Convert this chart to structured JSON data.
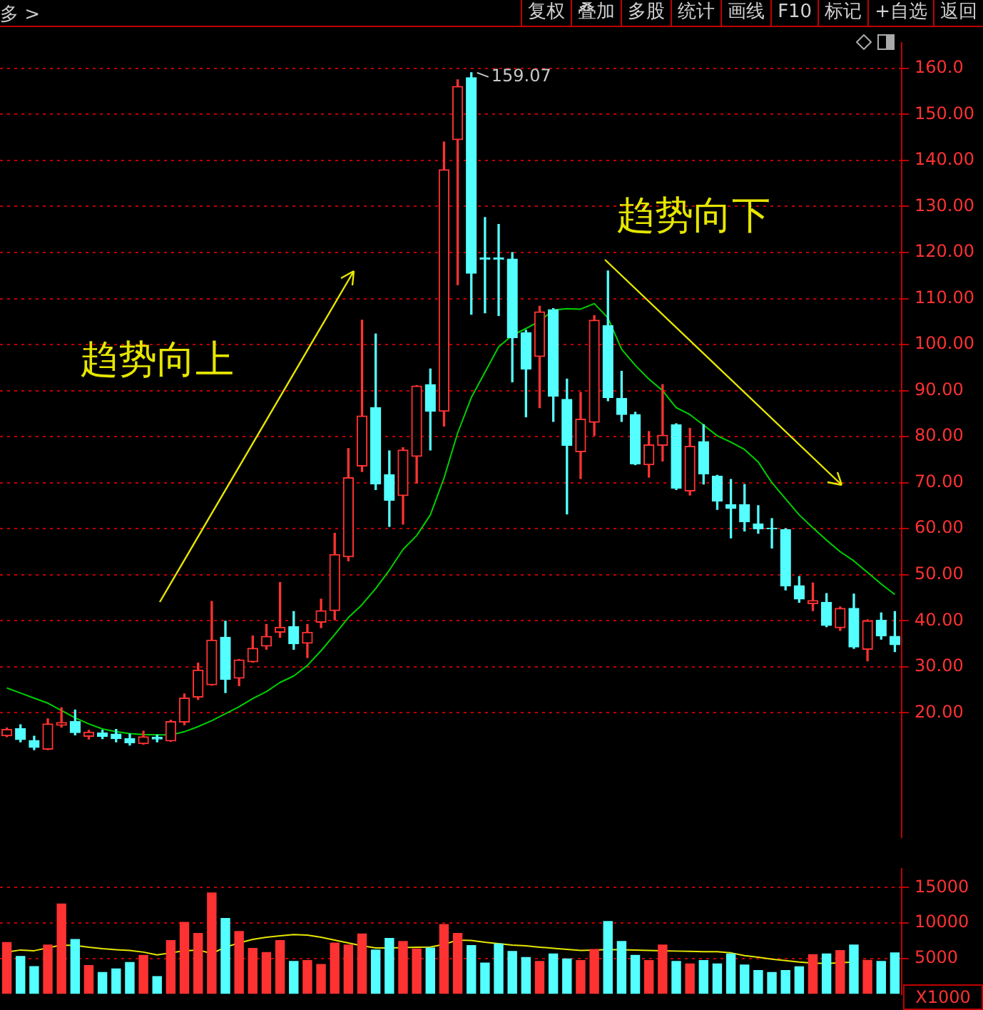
{
  "chart_data": [
    {
      "type": "candlestick",
      "categories": [
        null,
        null,
        null,
        null,
        null,
        null,
        null,
        null,
        null,
        null,
        null,
        null,
        null,
        null,
        null,
        null,
        null,
        null,
        null,
        null,
        null,
        null,
        null,
        null,
        null,
        null,
        null,
        null,
        null,
        null,
        null,
        null,
        null,
        null,
        null,
        null,
        null,
        null,
        null,
        null,
        null,
        null,
        null,
        null,
        null,
        null,
        null,
        null,
        null,
        null,
        null,
        null,
        null,
        null,
        null,
        null,
        null,
        null,
        null,
        null,
        null,
        null,
        null,
        null,
        null,
        null
      ],
      "ohlc": [
        [
          15.0,
          16.7,
          14.8,
          16.4
        ],
        [
          16.6,
          17.4,
          13.7,
          14.2
        ],
        [
          14.0,
          14.9,
          12.0,
          12.5
        ],
        [
          12.1,
          18.7,
          12.0,
          17.6
        ],
        [
          17.3,
          21.1,
          16.9,
          17.9
        ],
        [
          18.1,
          20.6,
          15.2,
          15.7
        ],
        [
          14.9,
          16.2,
          14.3,
          15.8
        ],
        [
          15.6,
          16.2,
          14.4,
          14.9
        ],
        [
          15.4,
          16.4,
          13.7,
          14.4
        ],
        [
          14.4,
          15.4,
          13.0,
          13.5
        ],
        [
          13.3,
          16.0,
          13.2,
          14.8
        ],
        [
          14.7,
          15.2,
          13.7,
          14.3
        ],
        [
          13.9,
          18.4,
          13.8,
          18.1
        ],
        [
          18.0,
          24.1,
          17.4,
          23.2
        ],
        [
          23.4,
          30.8,
          22.9,
          29.3
        ],
        [
          26.1,
          44.2,
          26.0,
          35.8
        ],
        [
          36.4,
          39.9,
          24.4,
          27.3
        ],
        [
          27.5,
          31.6,
          25.9,
          31.5
        ],
        [
          31.1,
          36.7,
          31.0,
          34.0
        ],
        [
          34.5,
          39.2,
          33.8,
          36.6
        ],
        [
          37.5,
          48.3,
          36.4,
          38.6
        ],
        [
          38.7,
          42.0,
          33.8,
          35.0
        ],
        [
          35.1,
          39.2,
          32.0,
          37.5
        ],
        [
          39.7,
          44.7,
          38.5,
          42.2
        ],
        [
          42.2,
          59.0,
          40.2,
          54.4
        ],
        [
          53.9,
          77.4,
          53.0,
          71.1
        ],
        [
          73.6,
          105.3,
          72.4,
          84.5
        ],
        [
          86.3,
          102.3,
          68.5,
          69.7
        ],
        [
          71.7,
          76.9,
          60.5,
          66.2
        ],
        [
          67.2,
          77.6,
          61.0,
          77.1
        ],
        [
          75.7,
          91.1,
          69.9,
          91.0
        ],
        [
          91.3,
          94.7,
          77.1,
          85.5
        ],
        [
          85.5,
          144.0,
          82.3,
          138.0
        ],
        [
          144.5,
          157.5,
          113.0,
          156.1
        ],
        [
          158.0,
          159.07,
          106.6,
          115.5
        ],
        [
          118.8,
          127.6,
          106.9,
          118.5
        ],
        [
          118.8,
          126.1,
          106.3,
          118.5
        ],
        [
          118.6,
          120.0,
          91.9,
          101.5
        ],
        [
          102.6,
          103.1,
          84.3,
          94.7
        ],
        [
          97.4,
          108.3,
          86.3,
          107.1
        ],
        [
          107.6,
          107.8,
          83.3,
          88.8
        ],
        [
          88.1,
          92.5,
          63.2,
          78.1
        ],
        [
          76.7,
          89.6,
          70.9,
          83.8
        ],
        [
          83.1,
          106.3,
          80.3,
          105.3
        ],
        [
          104.1,
          116.0,
          87.8,
          88.5
        ],
        [
          88.3,
          94.2,
          83.3,
          84.8
        ],
        [
          84.8,
          85.3,
          73.9,
          74.1
        ],
        [
          73.9,
          81.1,
          71.2,
          78.2
        ],
        [
          78.1,
          91.3,
          74.7,
          80.3
        ],
        [
          82.6,
          82.8,
          68.5,
          68.8
        ],
        [
          68.2,
          81.8,
          67.3,
          77.9
        ],
        [
          78.9,
          82.6,
          69.7,
          71.9
        ],
        [
          71.4,
          71.6,
          64.2,
          66.0
        ],
        [
          65.2,
          70.7,
          58.0,
          64.4
        ],
        [
          65.2,
          69.6,
          59.5,
          61.5
        ],
        [
          61.0,
          65.0,
          59.0,
          60.0
        ],
        [
          60.1,
          62.2,
          55.8,
          60.0
        ],
        [
          59.8,
          60.0,
          46.7,
          47.6
        ],
        [
          47.6,
          49.6,
          44.0,
          44.7
        ],
        [
          43.7,
          48.2,
          42.2,
          44.4
        ],
        [
          44.0,
          45.9,
          38.7,
          39.0
        ],
        [
          38.5,
          43.0,
          37.9,
          42.7
        ],
        [
          42.7,
          45.8,
          34.0,
          34.3
        ],
        [
          33.8,
          40.2,
          31.3,
          40.0
        ],
        [
          40.1,
          41.7,
          36.0,
          36.7
        ],
        [
          36.6,
          42.0,
          33.3,
          34.8
        ]
      ],
      "series": [
        {
          "type": "line",
          "color": "#00d000",
          "values": [
            25.4,
            24.3,
            23.2,
            22.1,
            20.5,
            18.9,
            17.6,
            16.5,
            15.9,
            15.5,
            15.3,
            15.2,
            15.2,
            15.9,
            17.0,
            18.3,
            19.8,
            21.3,
            23.1,
            24.6,
            26.6,
            28.0,
            30.3,
            33.5,
            37.0,
            40.7,
            43.5,
            47.0,
            51.0,
            55.5,
            58.5,
            63.0,
            71.0,
            80.8,
            88.5,
            94.0,
            99.5,
            102.0,
            103.5,
            105.1,
            107.5,
            107.8,
            107.7,
            108.9,
            105.8,
            99.0,
            95.5,
            92.5,
            90.0,
            86.3,
            84.8,
            82.5,
            80.2,
            78.8,
            77.2,
            74.5,
            70.0,
            66.5,
            63.0,
            60.2,
            57.5,
            55.0,
            53.0,
            50.5,
            48.0,
            45.7
          ]
        }
      ],
      "ylim": [
        -7,
        165.5
      ],
      "yticks": [
        {
          "value": 20,
          "label": "20.00"
        },
        {
          "value": 30,
          "label": "30.00"
        },
        {
          "value": 40,
          "label": "40.00"
        },
        {
          "value": 50,
          "label": "50.00"
        },
        {
          "value": 60,
          "label": "60.00"
        },
        {
          "value": 70,
          "label": "70.00"
        },
        {
          "value": 80,
          "label": "80.00"
        },
        {
          "value": 90,
          "label": "90.00"
        },
        {
          "value": 100,
          "label": "100.00"
        },
        {
          "value": 110,
          "label": "110.00"
        },
        {
          "value": 120,
          "label": "120.00"
        },
        {
          "value": 130,
          "label": "130.00"
        },
        {
          "value": 140,
          "label": "140.00"
        },
        {
          "value": 150,
          "label": "150.00"
        },
        {
          "value": 160,
          "label": "160.0"
        }
      ],
      "grid": "y",
      "annotations": [
        "趋势向上",
        "趋势向下",
        "159.07",
        "多 >",
        "复权",
        "叠加",
        "多股",
        "统计",
        "画线",
        "F10",
        "标记",
        "+自选",
        "返回"
      ]
    },
    {
      "type": "bar",
      "categories": [
        null,
        null,
        null,
        null,
        null,
        null,
        null,
        null,
        null,
        null,
        null,
        null,
        null,
        null,
        null,
        null,
        null,
        null,
        null,
        null,
        null,
        null,
        null,
        null,
        null,
        null,
        null,
        null,
        null,
        null,
        null,
        null,
        null,
        null,
        null,
        null,
        null,
        null,
        null,
        null,
        null,
        null,
        null,
        null,
        null,
        null,
        null,
        null,
        null,
        null,
        null,
        null,
        null,
        null,
        null,
        null,
        null,
        null,
        null,
        null,
        null,
        null,
        null,
        null,
        null,
        null
      ],
      "series": [
        {
          "values": [
            7330,
            5350,
            3940,
            6970,
            12750,
            7740,
            4090,
            3100,
            3590,
            4500,
            5500,
            2530,
            7600,
            10150,
            8600,
            14300,
            10700,
            8880,
            6480,
            5910,
            7600,
            4650,
            4790,
            4220,
            7250,
            6970,
            8530,
            6270,
            7890,
            7470,
            6410,
            6550,
            9860,
            8600,
            6890,
            4440,
            7110,
            6060,
            5210,
            4650,
            5710,
            5000,
            4790,
            6330,
            10280,
            7470,
            5500,
            4790,
            6970,
            4650,
            4300,
            4790,
            4300,
            5710,
            4150,
            3380,
            3100,
            3380,
            3900,
            5620,
            5710,
            6200,
            6970,
            4800,
            4650,
            5850
          ],
          "colors": [
            "#ff3232",
            "#54ffff",
            "#54ffff",
            "#ff3232",
            "#ff3232",
            "#54ffff",
            "#ff3232",
            "#54ffff",
            "#54ffff",
            "#54ffff",
            "#ff3232",
            "#54ffff",
            "#ff3232",
            "#ff3232",
            "#ff3232",
            "#ff3232",
            "#54ffff",
            "#ff3232",
            "#ff3232",
            "#ff3232",
            "#ff3232",
            "#54ffff",
            "#ff3232",
            "#ff3232",
            "#ff3232",
            "#ff3232",
            "#ff3232",
            "#54ffff",
            "#54ffff",
            "#ff3232",
            "#ff3232",
            "#54ffff",
            "#ff3232",
            "#ff3232",
            "#54ffff",
            "#54ffff",
            "#54ffff",
            "#54ffff",
            "#54ffff",
            "#ff3232",
            "#54ffff",
            "#54ffff",
            "#ff3232",
            "#ff3232",
            "#54ffff",
            "#54ffff",
            "#54ffff",
            "#ff3232",
            "#ff3232",
            "#54ffff",
            "#ff3232",
            "#54ffff",
            "#54ffff",
            "#54ffff",
            "#54ffff",
            "#54ffff",
            "#54ffff",
            "#54ffff",
            "#54ffff",
            "#ff3232",
            "#54ffff",
            "#ff3232",
            "#54ffff",
            "#ff3232",
            "#54ffff",
            "#54ffff"
          ]
        },
        {
          "type": "line",
          "color": "#e6e600",
          "values": [
            5910,
            6200,
            6100,
            6500,
            6900,
            6850,
            6600,
            6400,
            6250,
            6140,
            5900,
            5500,
            5800,
            6100,
            6200,
            5710,
            6600,
            7200,
            7700,
            8000,
            8200,
            8380,
            8300,
            8000,
            7600,
            7200,
            6800,
            6500,
            6500,
            6550,
            6600,
            6620,
            7000,
            7600,
            7550,
            7300,
            7100,
            6900,
            6790,
            6600,
            6450,
            6300,
            6150,
            6200,
            6270,
            6250,
            6200,
            6140,
            6100,
            6050,
            6000,
            5950,
            5950,
            5800,
            5400,
            5180,
            4900,
            4700,
            4500,
            4350,
            4300,
            4400,
            4500,
            null,
            null,
            null
          ]
        }
      ],
      "ylim": [
        0,
        17600
      ],
      "yticks": [
        5000,
        10000,
        15000
      ],
      "grid": "y",
      "ylabel": "X1000"
    }
  ]
}
